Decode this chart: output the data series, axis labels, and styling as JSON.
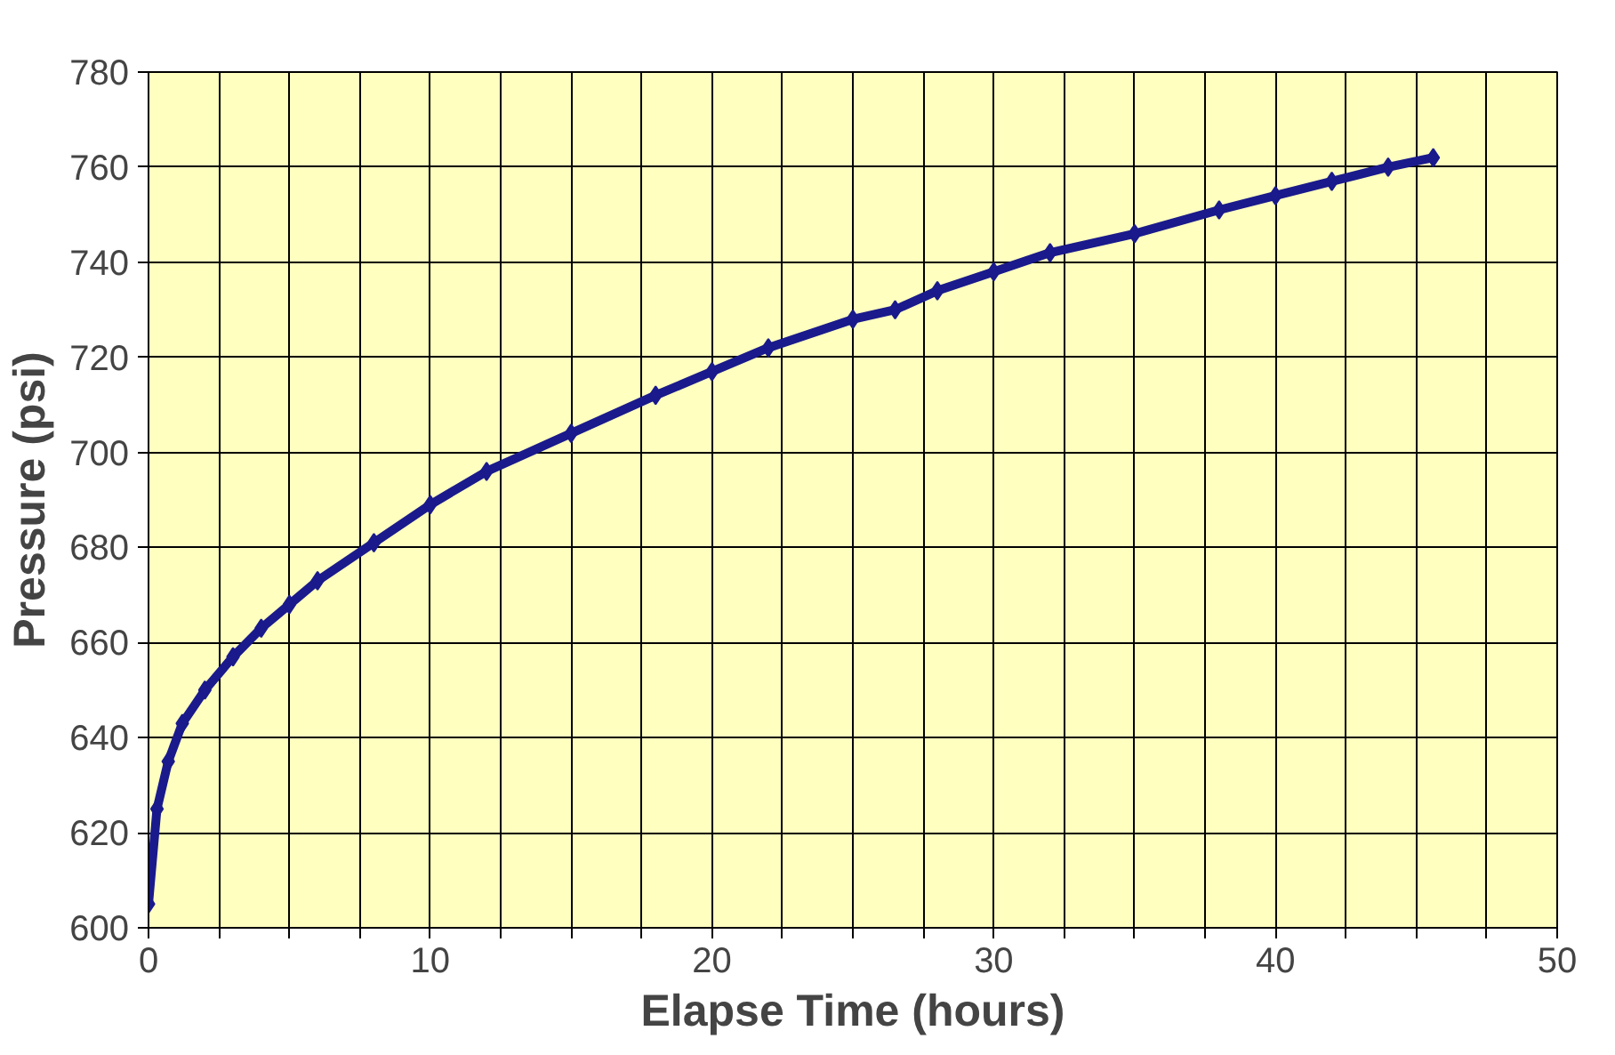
{
  "chart_data": {
    "type": "line",
    "xlabel": "Elapse Time (hours)",
    "ylabel": "Pressure (psi)",
    "xlim": [
      0,
      50
    ],
    "ylim": [
      600,
      780
    ],
    "xticks": [
      0,
      {
        "value": 2.5,
        "label": null
      },
      {
        "value": 5,
        "label": null
      },
      {
        "value": 7.5,
        "label": null
      },
      10,
      {
        "value": 12.5,
        "label": null
      },
      {
        "value": 15,
        "label": null
      },
      {
        "value": 17.5,
        "label": null
      },
      20,
      {
        "value": 22.5,
        "label": null
      },
      {
        "value": 25,
        "label": null
      },
      {
        "value": 27.5,
        "label": null
      },
      30,
      {
        "value": 32.5,
        "label": null
      },
      {
        "value": 35,
        "label": null
      },
      {
        "value": 37.5,
        "label": null
      },
      40,
      {
        "value": 42.5,
        "label": null
      },
      {
        "value": 45,
        "label": null
      },
      {
        "value": 47.5,
        "label": null
      },
      50
    ],
    "yticks": [
      600,
      620,
      640,
      660,
      680,
      700,
      720,
      740,
      760,
      780
    ],
    "grid": true,
    "marker": "diamond",
    "line_style": "solid",
    "series": [
      {
        "color": "#1a1a8c",
        "x": [
          0,
          0.3,
          0.7,
          1.2,
          2,
          3,
          4,
          5,
          6,
          8,
          10,
          12,
          15,
          18,
          20,
          22,
          25,
          26.5,
          28,
          30,
          32,
          35,
          38,
          40,
          42,
          44,
          45.6
        ],
        "values": [
          605,
          625,
          635,
          643,
          650,
          657,
          663,
          668,
          673,
          681,
          689,
          696,
          704,
          712,
          717,
          722,
          728,
          730,
          734,
          738,
          742,
          746,
          751,
          754,
          757,
          760,
          762
        ]
      }
    ]
  }
}
